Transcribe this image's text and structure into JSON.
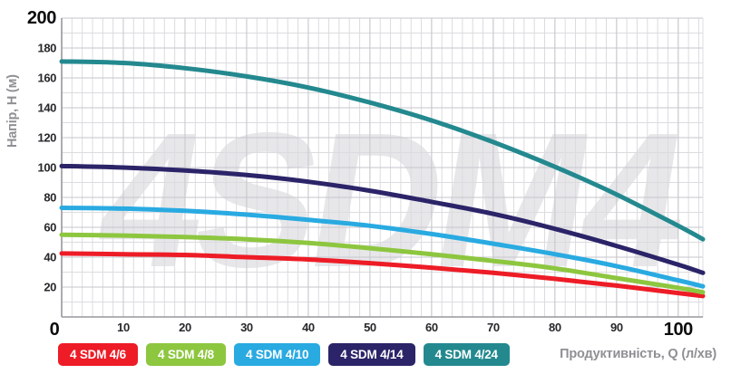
{
  "chart_data": {
    "type": "line",
    "title": "",
    "watermark": "4SDM4",
    "xlabel": "Продуктивність, Q (л/хв)",
    "ylabel": "Напір, H (м)",
    "xlim": [
      0,
      104
    ],
    "ylim": [
      0,
      200
    ],
    "x_ticks": [
      0,
      10,
      20,
      30,
      40,
      50,
      60,
      70,
      80,
      90,
      100
    ],
    "y_ticks": [
      20,
      40,
      60,
      80,
      100,
      120,
      140,
      160,
      180,
      200
    ],
    "grid": true,
    "legend_position": "bottom",
    "x": [
      0,
      10,
      20,
      30,
      40,
      50,
      60,
      70,
      80,
      90,
      100,
      104
    ],
    "series": [
      {
        "name": "4 SDM 4/6",
        "color": "#ed1c26",
        "values": [
          42.5,
          42,
          41.5,
          40,
          38.5,
          36,
          33,
          29.5,
          25.5,
          21,
          16,
          14
        ]
      },
      {
        "name": "4 SDM 4/8",
        "color": "#8dc63f",
        "values": [
          55,
          54.5,
          53.5,
          52,
          49.5,
          46,
          42,
          37.5,
          32.5,
          26,
          19.5,
          16.5
        ]
      },
      {
        "name": "4 SDM 4/10",
        "color": "#29aae1",
        "values": [
          73,
          72.5,
          71,
          68.5,
          65,
          61,
          55.5,
          49,
          42,
          34,
          24.5,
          20.5
        ]
      },
      {
        "name": "4 SDM 4/14",
        "color": "#2b2468",
        "values": [
          101,
          100,
          98,
          95,
          90.5,
          84.5,
          77,
          69,
          59,
          47.5,
          35,
          29.5
        ]
      },
      {
        "name": "4 SDM 4/24",
        "color": "#23898f",
        "values": [
          171,
          170,
          166.5,
          161,
          153.5,
          143.5,
          131.5,
          117,
          100.5,
          82,
          61,
          52
        ]
      }
    ],
    "colors": {
      "grid_minor": "#dcdce0",
      "grid_major": "#c6c6cc",
      "axis_line": "#97979d",
      "tick_text": "#28282c",
      "axis_title_text": "#8f8f94",
      "watermark": "#e7e7ea"
    }
  }
}
